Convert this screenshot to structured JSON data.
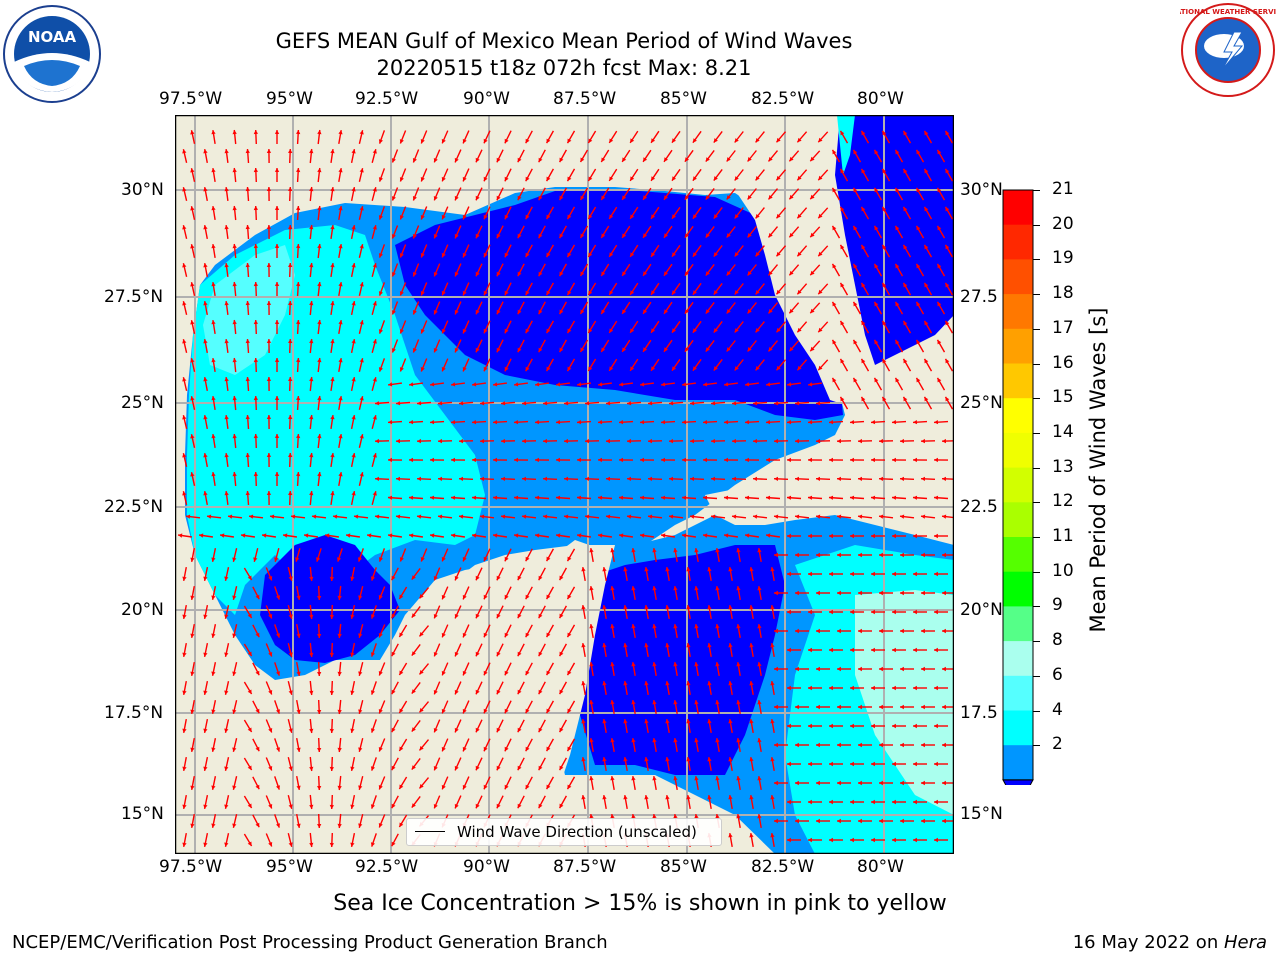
{
  "title_line1": "GEFS MEAN Gulf of Mexico Mean Period of Wind Waves",
  "title_line2": "20220515 t18z 072h fcst   Max: 8.21",
  "lon_labels": [
    "97.5°W",
    "95°W",
    "92.5°W",
    "90°W",
    "87.5°W",
    "85°W",
    "82.5°W",
    "80°W"
  ],
  "lat_labels": [
    "30°N",
    "27.5°N",
    "25°N",
    "22.5°N",
    "20°N",
    "17.5°N",
    "15°N"
  ],
  "lat_labels_right": [
    "30°N",
    "27.5",
    "25°N",
    "22.5",
    "20°N",
    "17.5",
    "15°N"
  ],
  "legend_label": "Wind Wave Direction (unscaled)",
  "colorbar": {
    "label": "Mean Period of Wind Waves [s]",
    "ticks": [
      "21",
      "20",
      "19",
      "18",
      "17",
      "16",
      "15",
      "14",
      "13",
      "12",
      "11",
      "10",
      "9",
      "8",
      "6",
      "4",
      "2"
    ],
    "colors": [
      "#ff0000",
      "#ff2800",
      "#ff5000",
      "#ff7800",
      "#ffa000",
      "#ffc800",
      "#ffff00",
      "#f0ff00",
      "#d2ff00",
      "#aaff00",
      "#55ff00",
      "#00ff00",
      "#55ff88",
      "#aaffee",
      "#55ffff",
      "#00ffff",
      "#0096ff"
    ],
    "extend_color": "#0000ff"
  },
  "colors": {
    "land": "#efeddc",
    "deep_blue": "#0000ff",
    "mid_blue": "#0096ff",
    "cyan": "#00ffff",
    "light_cyan": "#55ffff",
    "pale_cyan": "#aaffee",
    "arrow": "#ff0000",
    "grid": "#b0b0b0"
  },
  "noaa_logo_text": "NOAA",
  "nws_logo_text": "NATIONAL WEATHER SERVICE",
  "ice_note": "Sea Ice Concentration > 15% is shown in pink to yellow",
  "footer_left": "NCEP/EMC/Verification Post Processing Product Generation Branch",
  "footer_right_prefix": "16 May 2022 on ",
  "footer_right_host": "Hera"
}
